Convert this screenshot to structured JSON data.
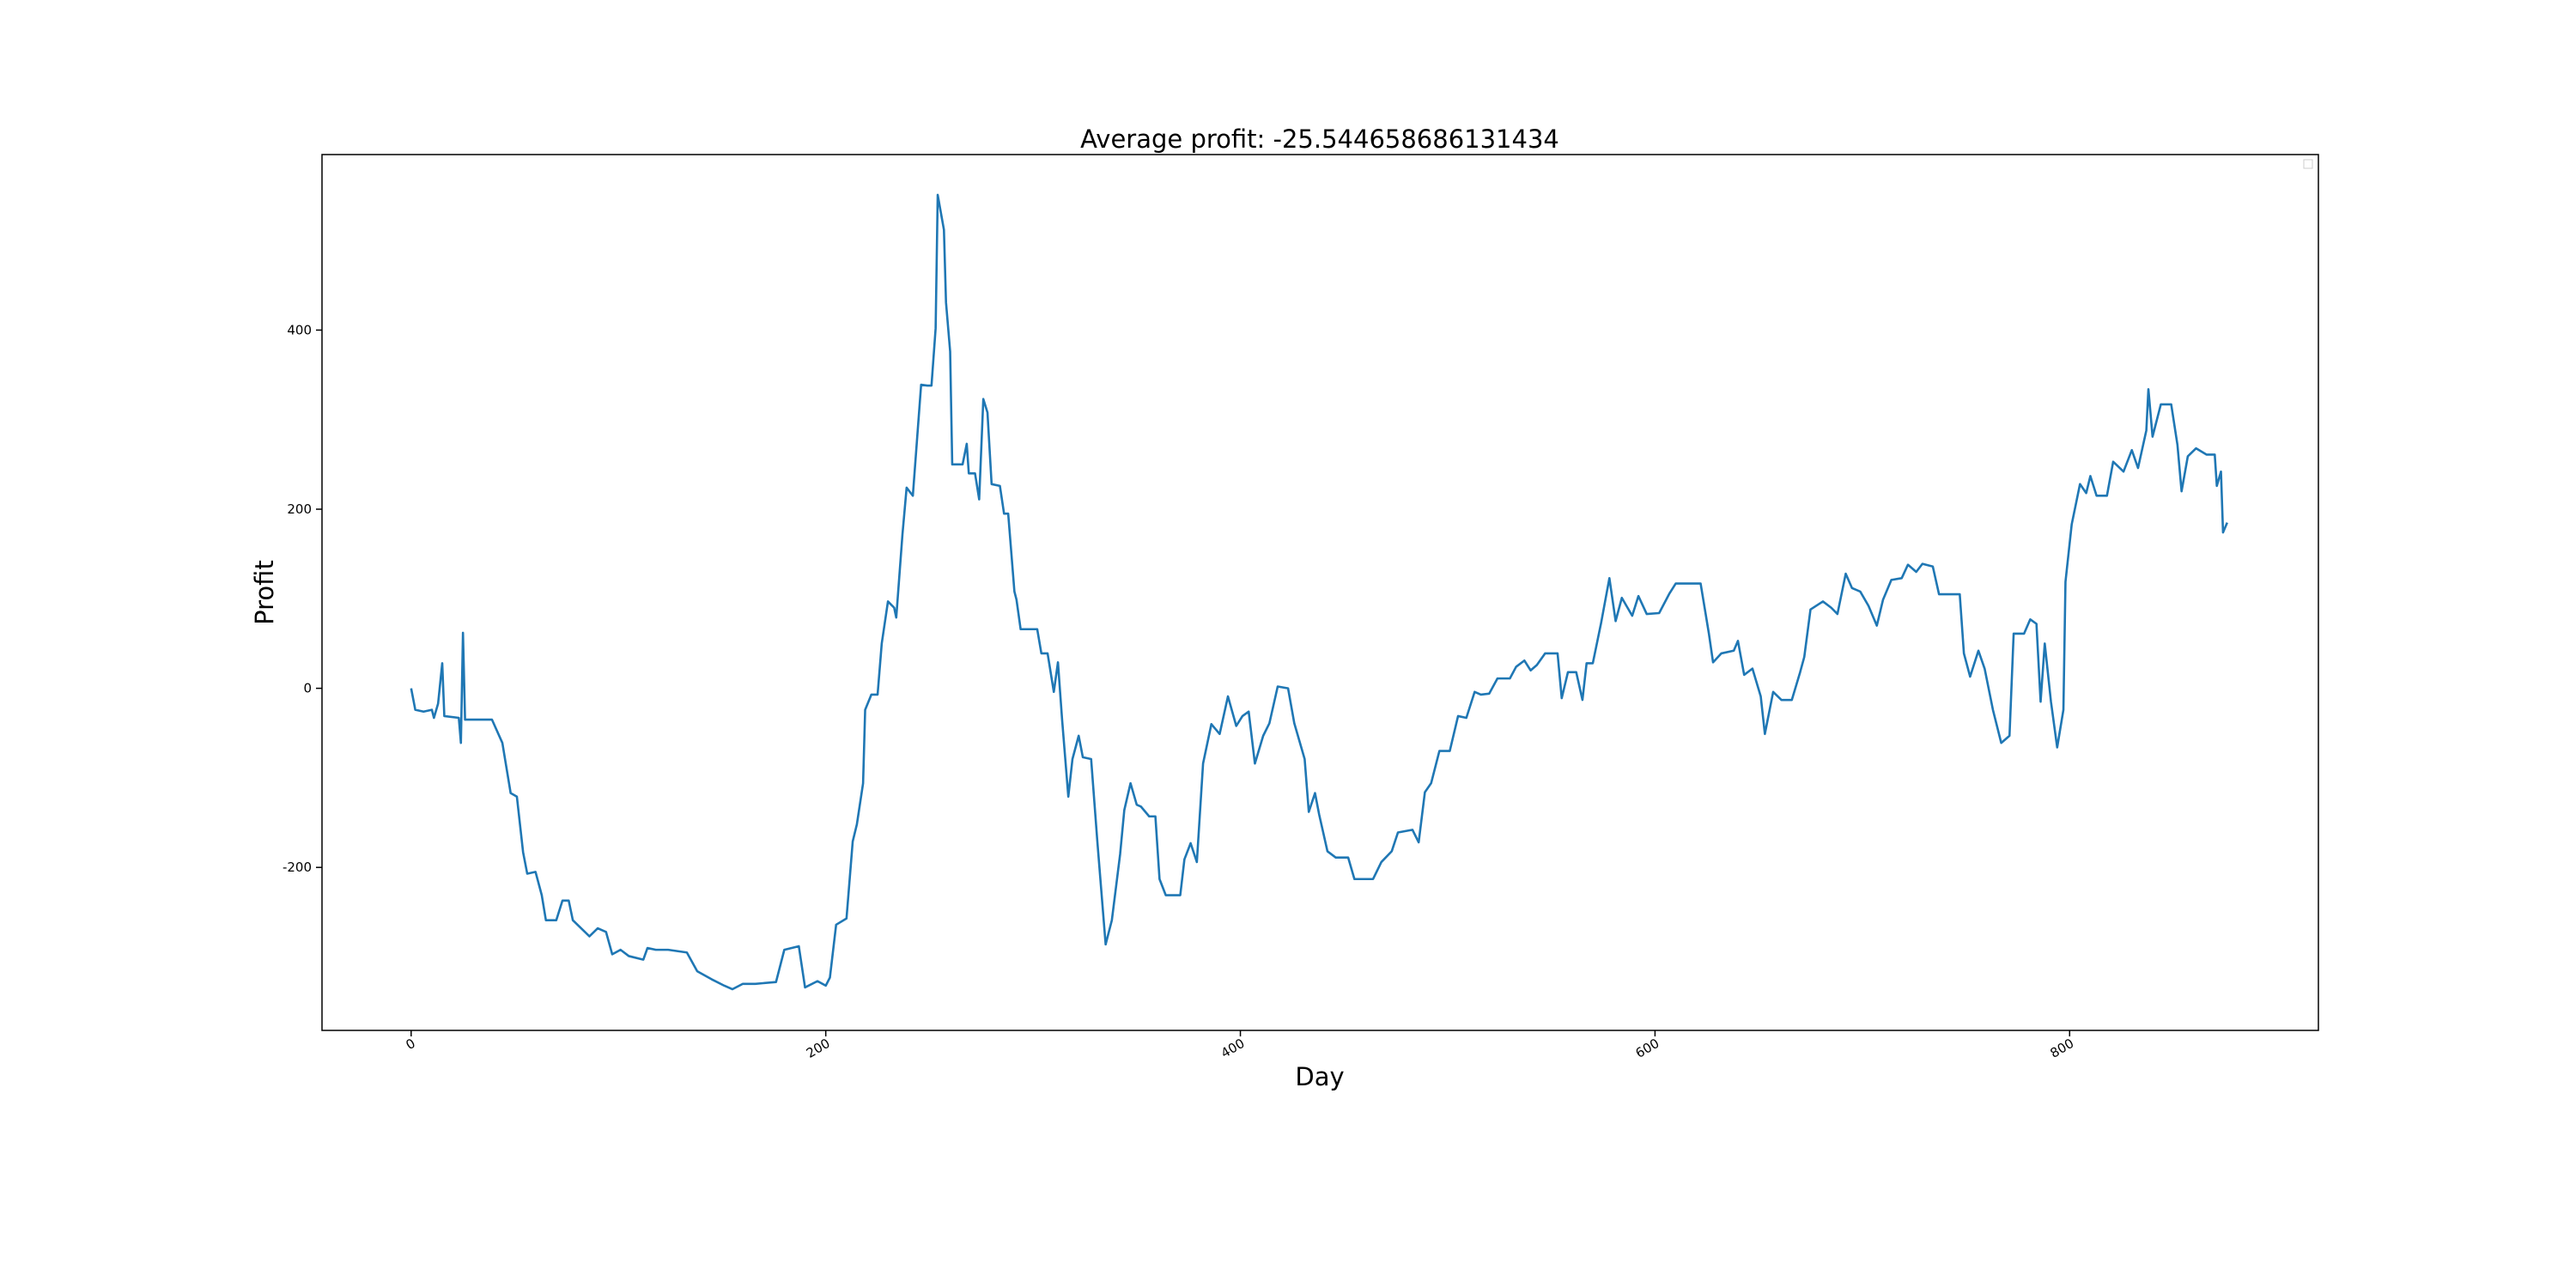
{
  "chart_data": {
    "type": "line",
    "title": "Average profit: -25.544658686131434",
    "x_label": "Day",
    "y_label": "Profit",
    "xlim": [
      -43,
      920
    ],
    "xticks": [
      0,
      200,
      400,
      600,
      800
    ],
    "ylim": [
      -382,
      596
    ],
    "yticks": [
      -200,
      0,
      200,
      400
    ],
    "color": "#1f77b4",
    "x": [
      0,
      2,
      6,
      10,
      11,
      13,
      15,
      16,
      23,
      24,
      25,
      26,
      39,
      44,
      48,
      51,
      54,
      56,
      60,
      63,
      65,
      70,
      73,
      76,
      78,
      82,
      86,
      90,
      94,
      97,
      101,
      105,
      112,
      114,
      118,
      124,
      133,
      138,
      145,
      151,
      155,
      160,
      166,
      176,
      180,
      187,
      190,
      196,
      200,
      202,
      205,
      210,
      213,
      215,
      218,
      219,
      222,
      225,
      227,
      230,
      233,
      234,
      237,
      239,
      242,
      246,
      249,
      251,
      253,
      254,
      257,
      258,
      260,
      261,
      266,
      268,
      269,
      272,
      274,
      276,
      278,
      280,
      284,
      286,
      288,
      291,
      292,
      294,
      302,
      304,
      307,
      310,
      312,
      314,
      317,
      319,
      322,
      324,
      328,
      331,
      335,
      338,
      342,
      344,
      347,
      350,
      352,
      356,
      359,
      361,
      364,
      371,
      373,
      376,
      379,
      382,
      386,
      390,
      394,
      398,
      401,
      404,
      407,
      411,
      414,
      418,
      423,
      426,
      431,
      433,
      436,
      438,
      442,
      446,
      452,
      455,
      464,
      468,
      473,
      476,
      483,
      486,
      489,
      492,
      496,
      501,
      505,
      509,
      513,
      516,
      520,
      524,
      530,
      533,
      537,
      540,
      543,
      547,
      553,
      555,
      558,
      562,
      565,
      567,
      570,
      574,
      578,
      581,
      584,
      589,
      592,
      596,
      602,
      607,
      610,
      622,
      626,
      628,
      632,
      638,
      640,
      643,
      647,
      651,
      653,
      657,
      661,
      666,
      670,
      672,
      675,
      681,
      685,
      688,
      692,
      695,
      699,
      703,
      707,
      710,
      714,
      719,
      722,
      726,
      729,
      734,
      737,
      747,
      749,
      752,
      756,
      759,
      763,
      767,
      771,
      773,
      778,
      781,
      784,
      786,
      788,
      791,
      794,
      797,
      798,
      801,
      805,
      808,
      810,
      813,
      818,
      821,
      826,
      830,
      833,
      837,
      838,
      840,
      844,
      849,
      852,
      854,
      857,
      861,
      866,
      870,
      871,
      873,
      874,
      876
    ],
    "values": [
      0,
      -24,
      -26,
      -24,
      -33,
      -17,
      28,
      -31,
      -33,
      -61,
      62,
      -35,
      -35,
      -61,
      -117,
      -121,
      -183,
      -207,
      -205,
      -231,
      -259,
      -259,
      -237,
      -237,
      -259,
      -268,
      -277,
      -268,
      -272,
      -297,
      -292,
      -299,
      -303,
      -290,
      -292,
      -292,
      -295,
      -316,
      -325,
      -332,
      -336,
      -330,
      -330,
      -328,
      -292,
      -288,
      -334,
      -327,
      -332,
      -323,
      -264,
      -257,
      -171,
      -152,
      -106,
      -24,
      -7,
      -7,
      50,
      97,
      90,
      79,
      172,
      224,
      215,
      339,
      338,
      338,
      402,
      551,
      512,
      431,
      376,
      250,
      250,
      273,
      240,
      240,
      211,
      323,
      308,
      228,
      226,
      195,
      195,
      108,
      99,
      66,
      66,
      39,
      39,
      -4,
      29,
      -35,
      -121,
      -79,
      -53,
      -77,
      -79,
      -171,
      -286,
      -259,
      -185,
      -136,
      -106,
      -130,
      -132,
      -143,
      -143,
      -213,
      -231,
      -231,
      -191,
      -173,
      -194,
      -84,
      -40,
      -51,
      -9,
      -42,
      -31,
      -26,
      -84,
      -53,
      -39,
      2,
      0,
      -39,
      -79,
      -138,
      -117,
      -141,
      -182,
      -189,
      -189,
      -213,
      -213,
      -194,
      -182,
      -161,
      -158,
      -172,
      -116,
      -106,
      -70,
      -70,
      -31,
      -33,
      -4,
      -7,
      -6,
      11,
      11,
      24,
      31,
      20,
      26,
      39,
      39,
      -11,
      18,
      18,
      -13,
      28,
      28,
      73,
      123,
      75,
      101,
      81,
      103,
      83,
      84,
      106,
      117,
      117,
      61,
      29,
      39,
      42,
      53,
      15,
      22,
      -9,
      -51,
      -4,
      -13,
      -13,
      18,
      35,
      88,
      97,
      90,
      83,
      128,
      112,
      108,
      92,
      70,
      99,
      121,
      123,
      138,
      130,
      139,
      136,
      105,
      105,
      39,
      13,
      42,
      22,
      -24,
      -61,
      -53,
      61,
      61,
      77,
      72,
      -15,
      50,
      -15,
      -66,
      -24,
      119,
      183,
      228,
      218,
      237,
      215,
      215,
      253,
      242,
      266,
      246,
      288,
      334,
      281,
      317,
      317,
      272,
      220,
      259,
      268,
      261,
      261,
      226,
      242,
      174,
      185
    ]
  }
}
